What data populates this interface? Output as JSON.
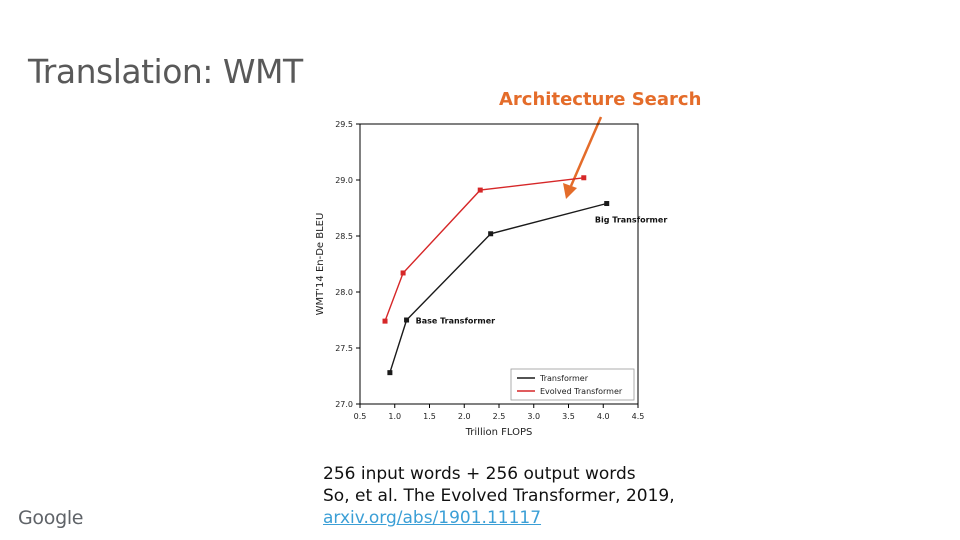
{
  "slide": {
    "title": "Translation: WMT",
    "callout": "Architecture Search",
    "footnote_line1": "256 input words + 256 output words",
    "footnote_line2": "So, et al. The Evolved Transformer, 2019,",
    "link_text": "arxiv.org/abs/1901.11117",
    "logo": "Google"
  },
  "colors": {
    "transformer": "#1a1a1a",
    "evolved": "#d62728",
    "callout": "#e46c2a"
  },
  "chart_data": {
    "type": "line",
    "xlabel": "Trillion FLOPS",
    "ylabel": "WMT'14 En-De BLEU",
    "xlim": [
      0.5,
      4.5
    ],
    "ylim": [
      27.0,
      29.5
    ],
    "xticks": [
      "0.5",
      "1.0",
      "1.5",
      "2.0",
      "2.5",
      "3.0",
      "3.5",
      "4.0",
      "4.5"
    ],
    "yticks": [
      "27.0",
      "27.5",
      "28.0",
      "28.5",
      "29.0",
      "29.5"
    ],
    "grid": false,
    "legend": "bottom-right",
    "series": [
      {
        "name": "Transformer",
        "color": "#1a1a1a",
        "points": [
          [
            0.93,
            27.28
          ],
          [
            1.17,
            27.75
          ],
          [
            2.38,
            28.52
          ],
          [
            4.05,
            28.79
          ]
        ]
      },
      {
        "name": "Evolved Transformer",
        "color": "#d62728",
        "points": [
          [
            0.86,
            27.74
          ],
          [
            1.12,
            28.17
          ],
          [
            2.23,
            28.91
          ],
          [
            3.72,
            29.02
          ]
        ]
      }
    ],
    "annotations": [
      {
        "text": "Base Transformer",
        "x": 1.3,
        "y": 27.72
      },
      {
        "text": "Big Transformer",
        "x": 3.88,
        "y": 28.62
      }
    ]
  }
}
